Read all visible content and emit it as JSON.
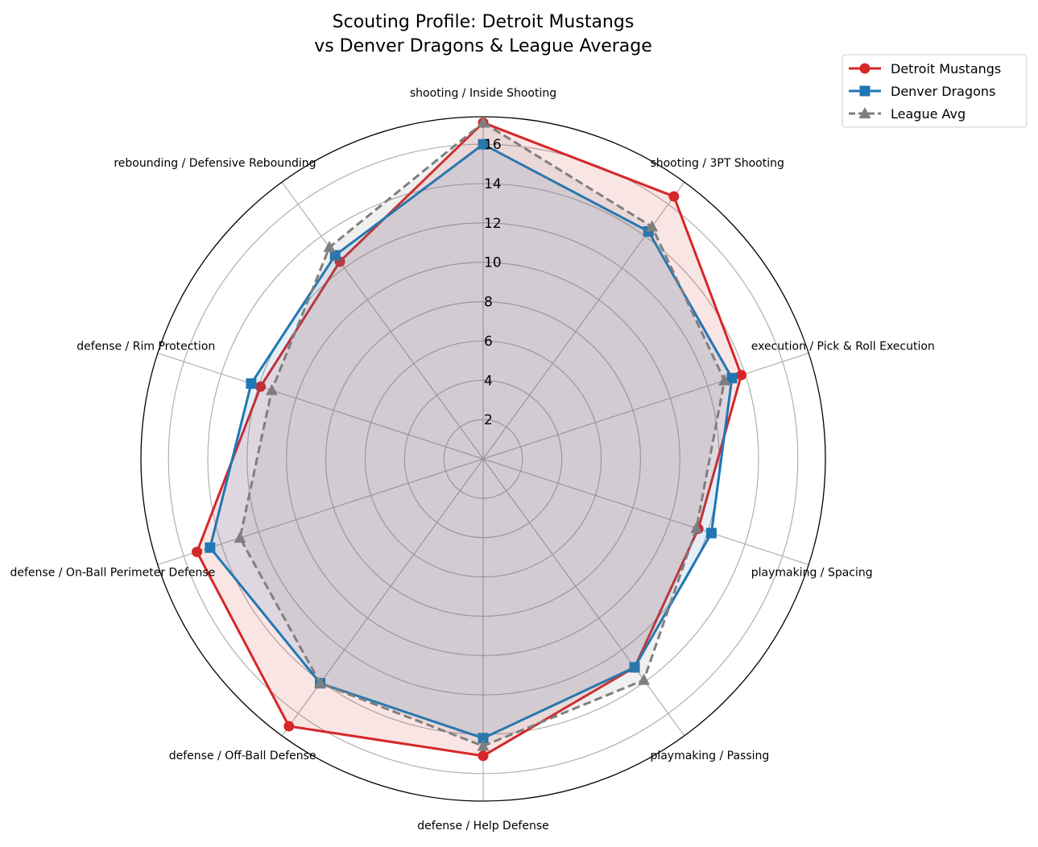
{
  "chart_data": {
    "type": "radar",
    "title": [
      "Scouting Profile: Detroit Mustangs",
      "vs Denver Dragons & League Average"
    ],
    "categories": [
      "shooting / Inside Shooting",
      "shooting / 3PT Shooting",
      "execution / Pick & Roll Execution",
      "playmaking / Spacing",
      "playmaking / Passing",
      "defense / Help Defense",
      "defense / Off-Ball Defense",
      "defense / On-Ball Perimeter Defense",
      "defense / Rim Protection",
      "rebounding / Defensive Rebounding"
    ],
    "rticks": [
      2,
      4,
      6,
      8,
      10,
      12,
      14,
      16
    ],
    "rlim": [
      0,
      17.4
    ],
    "grid": true,
    "legend_placement": "top-right",
    "series": [
      {
        "name": "Detroit Mustangs",
        "color": "#d62728",
        "marker": "circle",
        "linestyle": "solid",
        "values": [
          17.1,
          16.5,
          13.8,
          11.5,
          13.1,
          15.1,
          16.8,
          15.3,
          11.9,
          12.4
        ]
      },
      {
        "name": "Denver Dragons",
        "color": "#1f77b4",
        "marker": "square",
        "linestyle": "solid",
        "values": [
          16.0,
          14.3,
          13.3,
          12.2,
          13.1,
          14.2,
          14.1,
          14.6,
          12.4,
          12.8
        ]
      },
      {
        "name": "League Avg",
        "color": "#7f7f7f",
        "marker": "triangle",
        "linestyle": "dashed",
        "values": [
          17.1,
          14.6,
          12.9,
          11.4,
          13.9,
          14.6,
          14.1,
          13.0,
          11.3,
          13.3
        ]
      }
    ]
  }
}
